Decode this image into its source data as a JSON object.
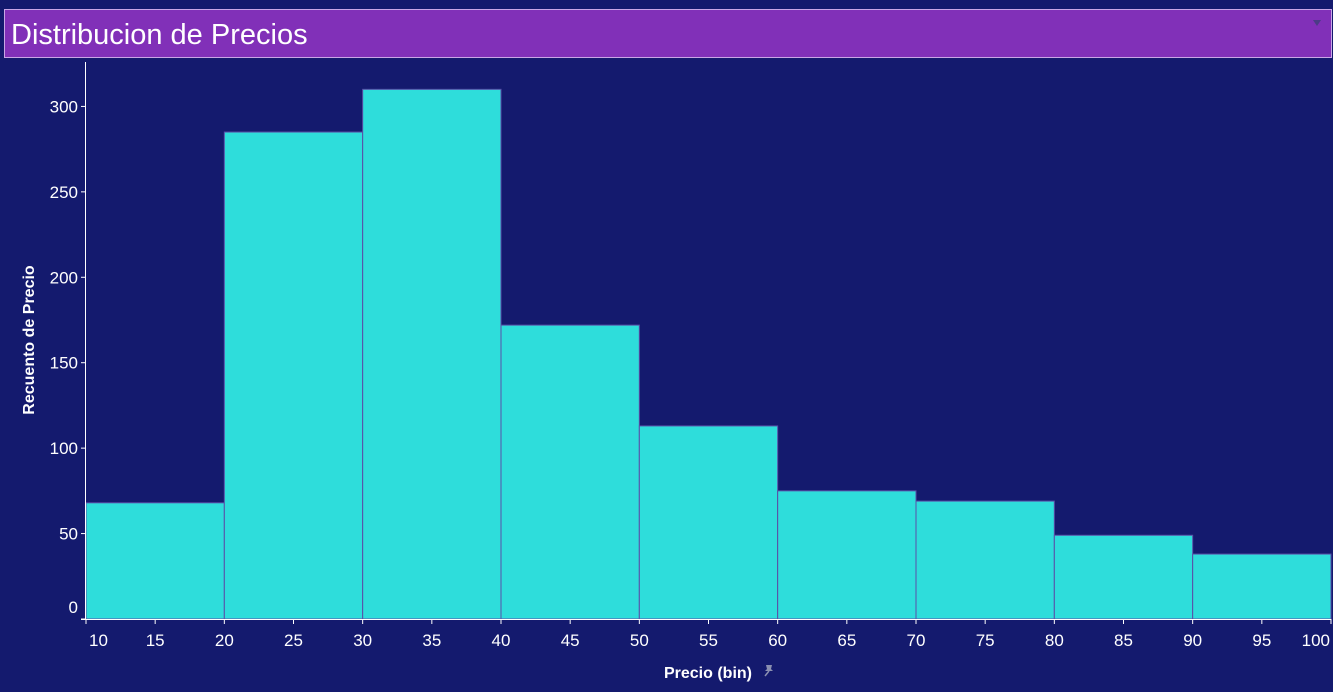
{
  "header": {
    "title": "Distribucion de Precios"
  },
  "colors": {
    "background": "#141a6e",
    "title_bar": "#8130b8",
    "bar_fill": "#2edddb",
    "bar_stroke": "#5a4fa8",
    "axis": "#ffffff"
  },
  "icons": {
    "menu": "dropdown-arrow-icon",
    "pin": "pin-icon"
  },
  "chart_data": {
    "type": "bar",
    "title": "Distribucion de Precios",
    "xlabel": "Precio (bin)",
    "ylabel": "Recuento de Precio",
    "bins": [
      {
        "start": 10,
        "end": 20,
        "value": 68
      },
      {
        "start": 20,
        "end": 30,
        "value": 285
      },
      {
        "start": 30,
        "end": 40,
        "value": 310
      },
      {
        "start": 40,
        "end": 50,
        "value": 172
      },
      {
        "start": 50,
        "end": 60,
        "value": 113
      },
      {
        "start": 60,
        "end": 70,
        "value": 75
      },
      {
        "start": 70,
        "end": 80,
        "value": 69
      },
      {
        "start": 80,
        "end": 90,
        "value": 49
      },
      {
        "start": 90,
        "end": 100,
        "value": 38
      }
    ],
    "xlim": [
      10,
      100
    ],
    "ylim": [
      0,
      326
    ],
    "x_ticks": [
      "10",
      "15",
      "20",
      "25",
      "30",
      "35",
      "40",
      "45",
      "50",
      "55",
      "60",
      "65",
      "70",
      "75",
      "80",
      "85",
      "90",
      "95",
      "100"
    ],
    "y_ticks": [
      "0",
      "50",
      "100",
      "150",
      "200",
      "250",
      "300"
    ],
    "grid": false,
    "legend": "none"
  }
}
